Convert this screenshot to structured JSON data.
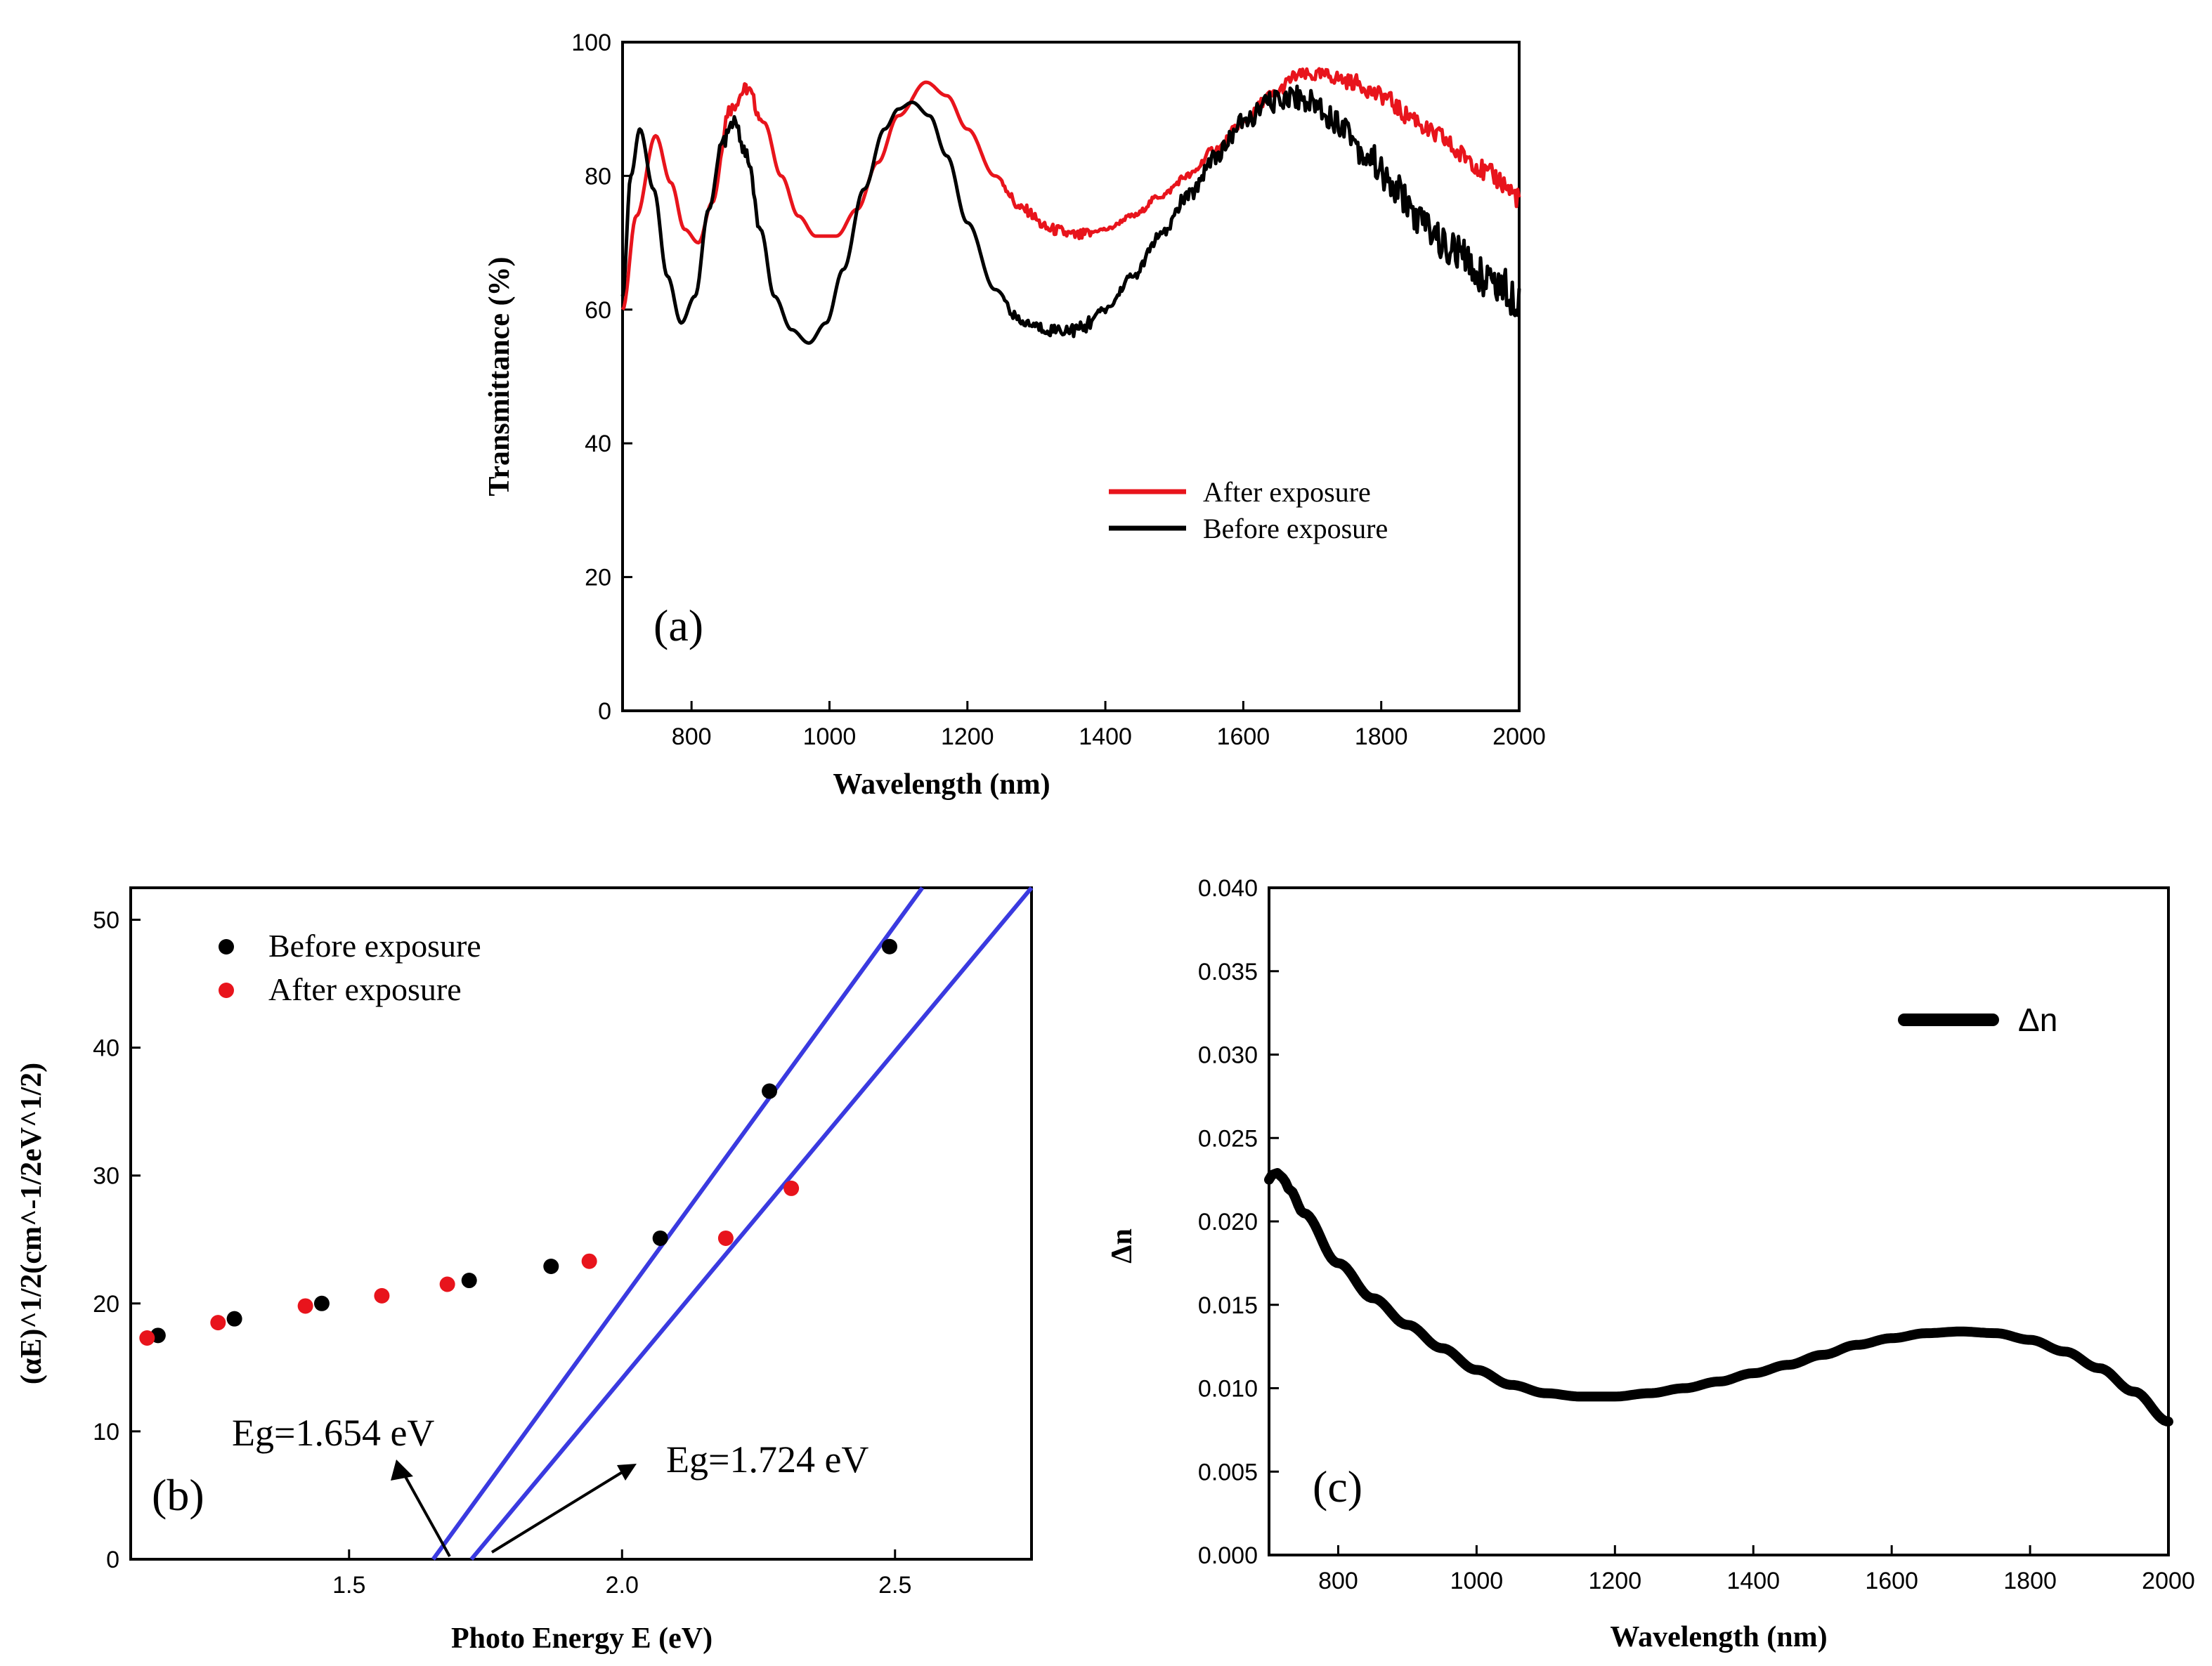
{
  "chart_data": [
    {
      "id": "a",
      "type": "line",
      "panel_label": "(a)",
      "xlabel": "Wavelength (nm)",
      "ylabel": "Transmittance (%)",
      "xlim": [
        700,
        2000
      ],
      "ylim": [
        0,
        100
      ],
      "xticks": [
        800,
        1000,
        1200,
        1400,
        1600,
        1800,
        2000
      ],
      "yticks": [
        0,
        20,
        40,
        60,
        80,
        100
      ],
      "colors": {
        "after": "#e8141c",
        "before": "#000000"
      },
      "legend_position": "lower-right",
      "series": [
        {
          "name": "After exposure",
          "color": "#e8141c",
          "x": [
            700,
            720,
            748,
            770,
            790,
            810,
            830,
            855,
            880,
            905,
            930,
            955,
            980,
            1010,
            1040,
            1070,
            1100,
            1140,
            1170,
            1200,
            1240,
            1280,
            1320,
            1360,
            1400,
            1440,
            1480,
            1520,
            1560,
            1600,
            1640,
            1680,
            1720,
            1760,
            1800,
            1840,
            1880,
            1920,
            1960,
            2000
          ],
          "y": [
            60,
            74,
            86,
            79,
            72,
            70,
            76,
            90,
            93,
            88,
            80,
            74,
            71,
            71,
            75,
            82,
            89,
            94,
            92,
            87,
            80,
            75,
            72,
            71,
            72,
            74,
            77,
            80,
            84,
            88,
            92,
            95,
            95,
            94,
            92,
            89,
            86,
            83,
            80,
            77
          ]
        },
        {
          "name": "Before exposure",
          "color": "#000000",
          "x": [
            700,
            712,
            725,
            745,
            765,
            785,
            805,
            825,
            845,
            862,
            880,
            900,
            920,
            945,
            970,
            995,
            1020,
            1050,
            1080,
            1100,
            1120,
            1145,
            1170,
            1200,
            1240,
            1280,
            1320,
            1360,
            1400,
            1440,
            1480,
            1520,
            1560,
            1600,
            1640,
            1670,
            1700,
            1740,
            1780,
            1820,
            1860,
            1900,
            1950,
            2000
          ],
          "y": [
            62,
            80,
            87,
            78,
            65,
            58,
            62,
            75,
            85,
            88,
            83,
            72,
            62,
            57,
            55,
            58,
            66,
            78,
            87,
            90,
            91,
            89,
            83,
            73,
            63,
            58,
            57,
            57,
            60,
            65,
            71,
            77,
            83,
            88,
            91,
            92,
            91,
            88,
            83,
            78,
            73,
            69,
            65,
            62
          ]
        }
      ]
    },
    {
      "id": "b",
      "type": "scatter",
      "panel_label": "(b)",
      "xlabel": "Photo Energy E (eV)",
      "ylabel": "(αE)^1/2(cm^-1/2eV^1/2)",
      "xlim": [
        1.1,
        2.75
      ],
      "ylim": [
        0,
        52.5
      ],
      "xticks": [
        1.5,
        2.0,
        2.5
      ],
      "xtick_labels": [
        "1.5",
        "2.0",
        "2.5"
      ],
      "yticks": [
        0,
        10,
        20,
        30,
        40,
        50
      ],
      "legend_position": "top-left",
      "series": [
        {
          "name": "Before exposure",
          "color": "#000000",
          "x": [
            1.15,
            1.29,
            1.45,
            1.72,
            1.87,
            2.07,
            2.27,
            2.49
          ],
          "y": [
            17.5,
            18.8,
            20.0,
            21.8,
            22.9,
            25.1,
            36.6,
            47.9
          ]
        },
        {
          "name": "After exposure",
          "color": "#e8141c",
          "x": [
            1.13,
            1.26,
            1.42,
            1.56,
            1.68,
            1.94,
            2.19,
            2.31
          ],
          "y": [
            17.3,
            18.5,
            19.8,
            20.6,
            21.5,
            23.3,
            25.1,
            29.0
          ]
        }
      ],
      "fit_lines": [
        {
          "name": "Before fit",
          "color": "#3a3ae0",
          "x": [
            1.654,
            2.55
          ],
          "y": [
            0,
            52.5
          ]
        },
        {
          "name": "After fit",
          "color": "#3a3ae0",
          "x": [
            1.724,
            2.75
          ],
          "y": [
            0,
            52.5
          ]
        }
      ],
      "annotations": {
        "eg_before": "Eg=1.654 eV",
        "eg_after": "Eg=1.724 eV"
      }
    },
    {
      "id": "c",
      "type": "line",
      "panel_label": "(c)",
      "xlabel": "Wavelength (nm)",
      "ylabel": "Δn",
      "xlim": [
        700,
        2000
      ],
      "ylim": [
        0,
        0.04
      ],
      "xticks": [
        800,
        1000,
        1200,
        1400,
        1600,
        1800,
        2000
      ],
      "yticks": [
        0,
        0.005,
        0.01,
        0.015,
        0.02,
        0.025,
        0.03,
        0.035,
        0.04
      ],
      "ytick_labels": [
        "0.000",
        "0.005",
        "0.010",
        "0.015",
        "0.020",
        "0.025",
        "0.030",
        "0.035",
        "0.040"
      ],
      "legend_position": "top-right",
      "series": [
        {
          "name": "Δn",
          "color": "#000000",
          "x": [
            700,
            705,
            712,
            720,
            730,
            750,
            800,
            850,
            900,
            950,
            1000,
            1050,
            1100,
            1150,
            1200,
            1250,
            1300,
            1350,
            1400,
            1450,
            1500,
            1550,
            1600,
            1650,
            1700,
            1750,
            1800,
            1850,
            1900,
            1950,
            2000
          ],
          "y": [
            0.0225,
            0.0228,
            0.0229,
            0.0226,
            0.0219,
            0.0205,
            0.0175,
            0.0154,
            0.0138,
            0.0124,
            0.0111,
            0.0102,
            0.0097,
            0.0095,
            0.0095,
            0.0097,
            0.01,
            0.0104,
            0.0109,
            0.0114,
            0.012,
            0.0126,
            0.013,
            0.0133,
            0.0134,
            0.0133,
            0.0129,
            0.0122,
            0.0112,
            0.0098,
            0.008
          ]
        }
      ]
    }
  ]
}
